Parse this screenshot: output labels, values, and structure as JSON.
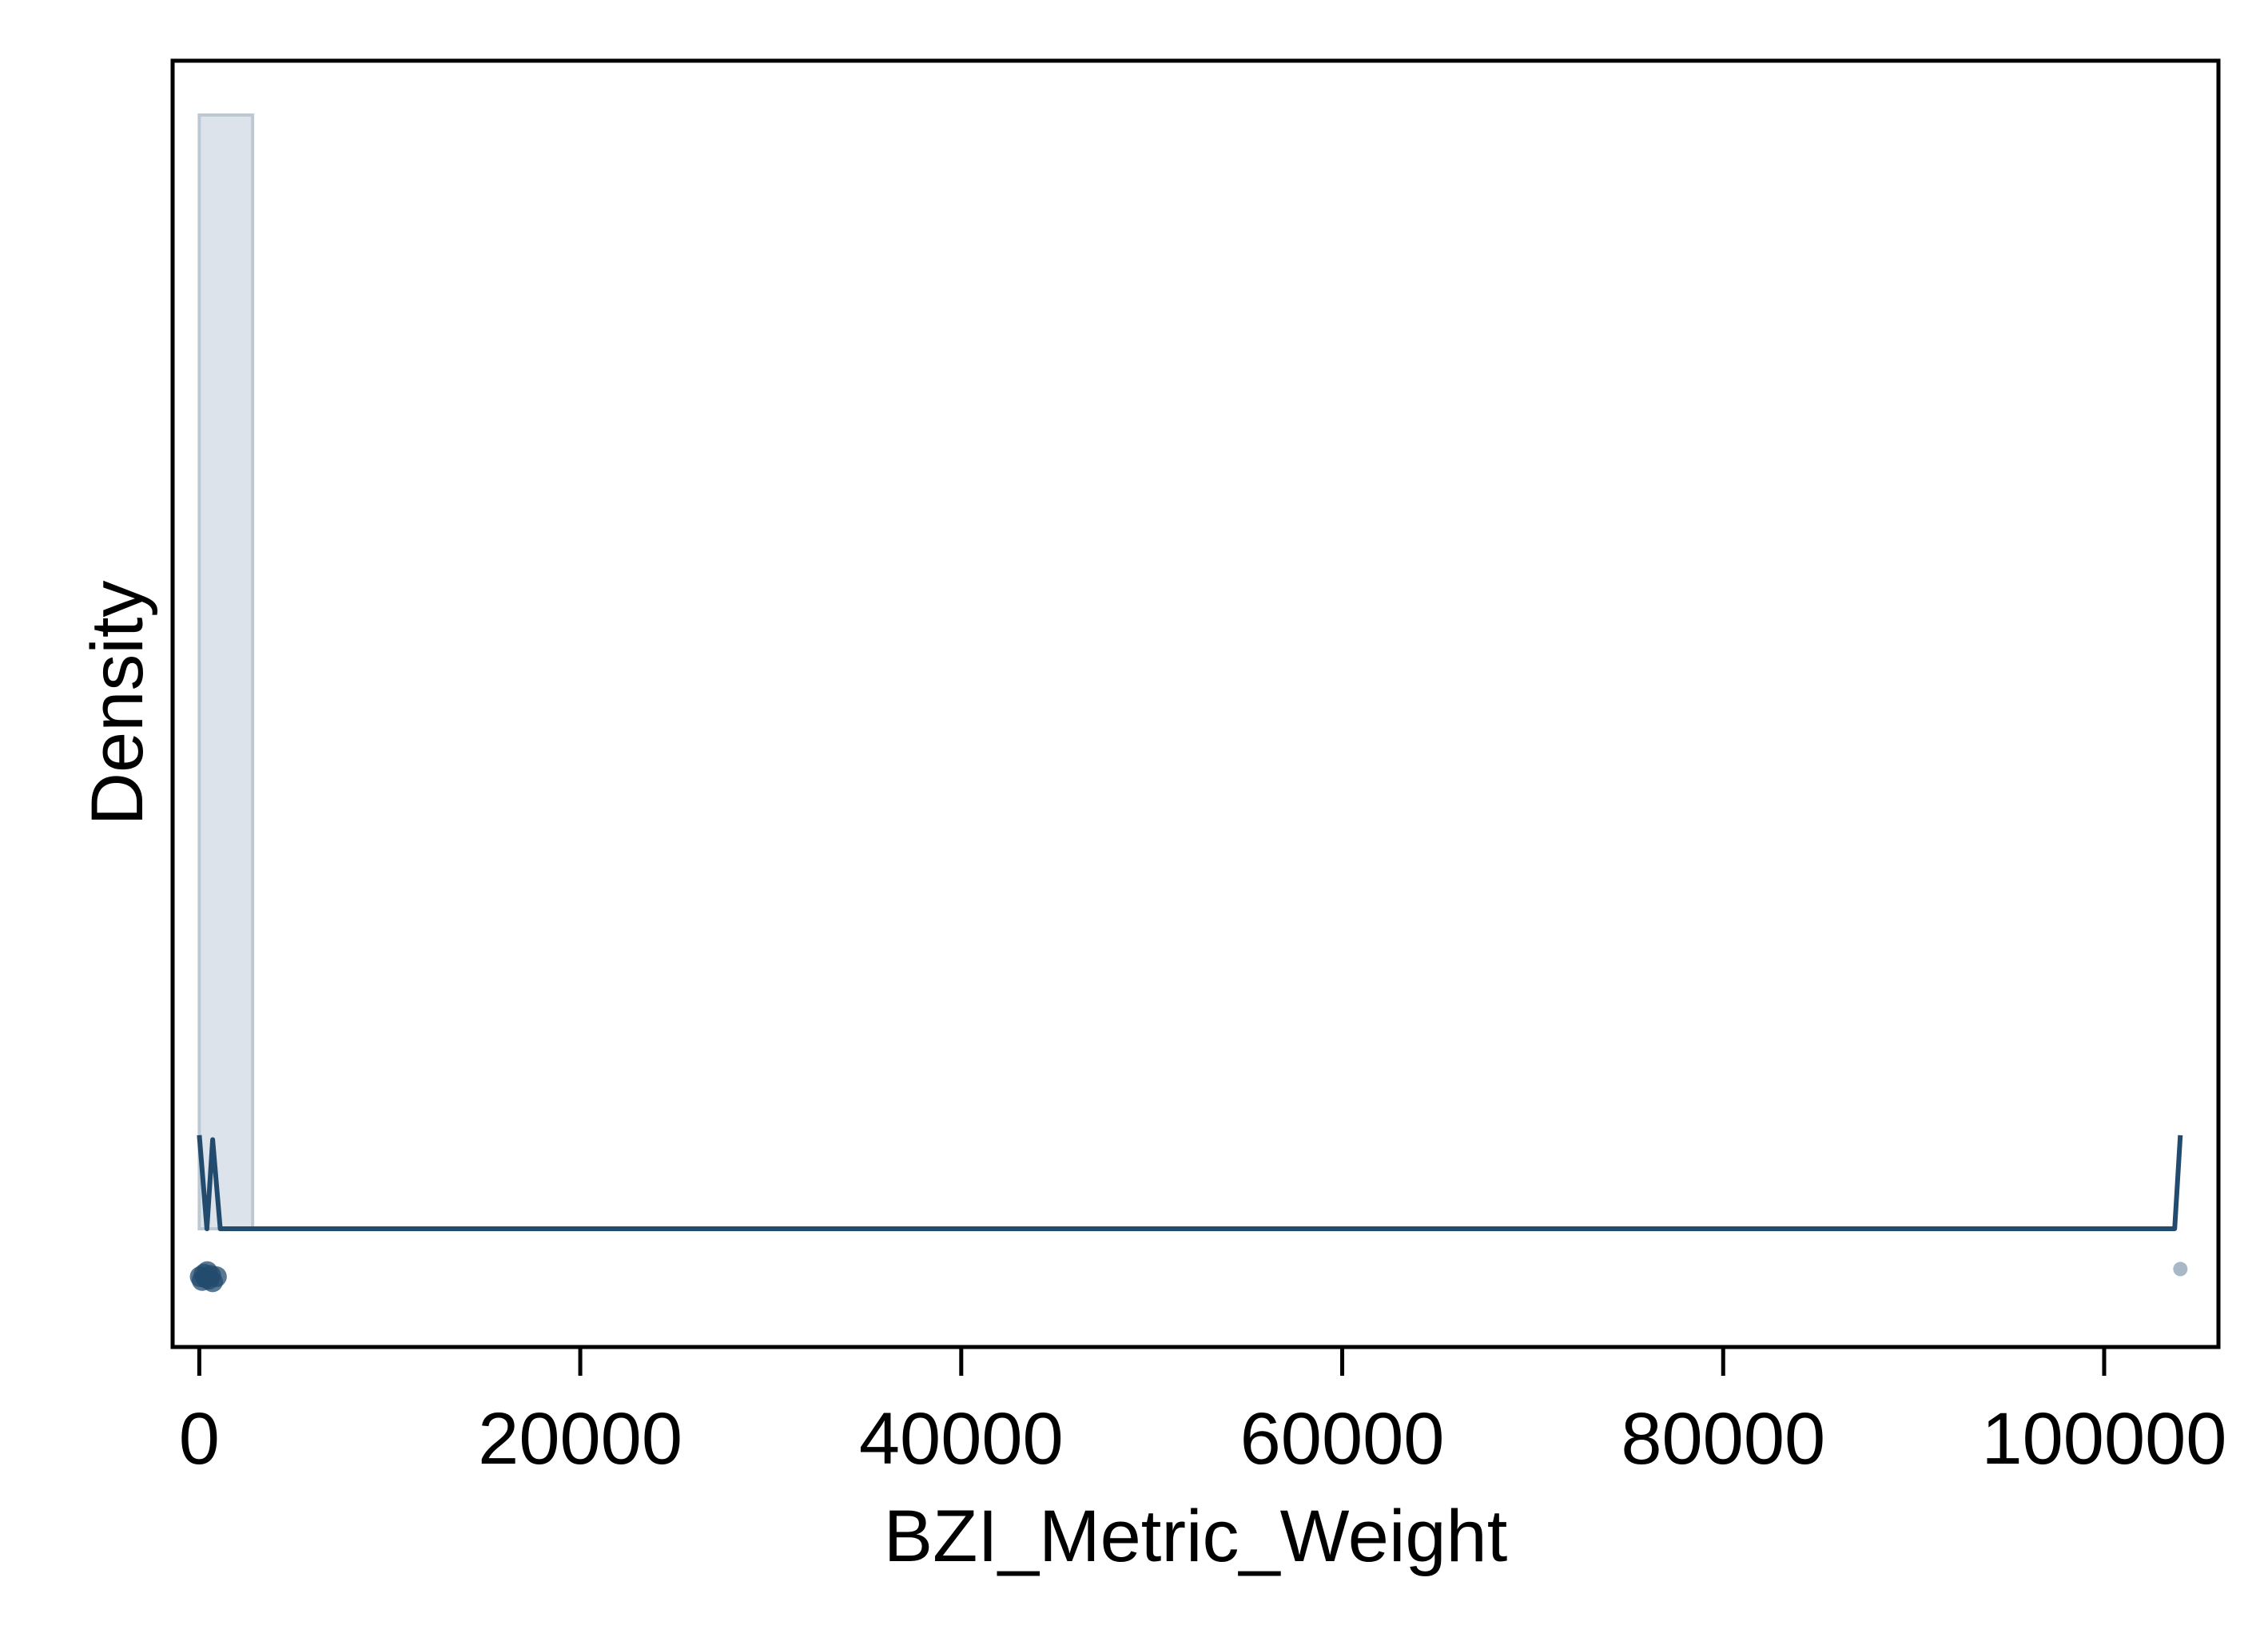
{
  "chart_data": {
    "type": "histogram",
    "xlabel": "BZI_Metric_Weight",
    "ylabel": "Density",
    "xlim": [
      -1400,
      106000
    ],
    "x_ticks": [
      0,
      20000,
      40000,
      60000,
      80000,
      100000
    ],
    "x_tick_labels": [
      "0",
      "20000",
      "40000",
      "60000",
      "80000",
      "100000"
    ],
    "y_ticks_visible": false,
    "grid": false,
    "legend": "none",
    "histogram": {
      "bins": [
        {
          "x0": 0,
          "x1": 2800,
          "density": 1.0
        }
      ]
    },
    "density_curve": [
      {
        "x": 0,
        "y": 0.084
      },
      {
        "x": 400,
        "y": 0.0
      },
      {
        "x": 700,
        "y": 0.08
      },
      {
        "x": 1100,
        "y": 0.0
      },
      {
        "x": 103000,
        "y": 0.0
      },
      {
        "x": 103700,
        "y": 0.0
      },
      {
        "x": 104000,
        "y": 0.084
      }
    ],
    "rug_points": [
      {
        "x": 50,
        "y_jitter": 0.0
      },
      {
        "x": 150,
        "y_jitter": 0.3
      },
      {
        "x": 250,
        "y_jitter": -0.2
      },
      {
        "x": 350,
        "y_jitter": 0.1
      },
      {
        "x": 420,
        "y_jitter": -0.4
      },
      {
        "x": 500,
        "y_jitter": 0.2
      },
      {
        "x": 600,
        "y_jitter": -0.1
      },
      {
        "x": 700,
        "y_jitter": 0.4
      },
      {
        "x": 900,
        "y_jitter": 0.0
      },
      {
        "x": 104000,
        "y_jitter": -0.6
      }
    ],
    "colors": {
      "bar_fill": "#dce3ea",
      "bar_stroke": "#bcc8d2",
      "line": "#234b6e",
      "points": "#234b6e",
      "outlier_point": "#a9b8c6"
    }
  }
}
